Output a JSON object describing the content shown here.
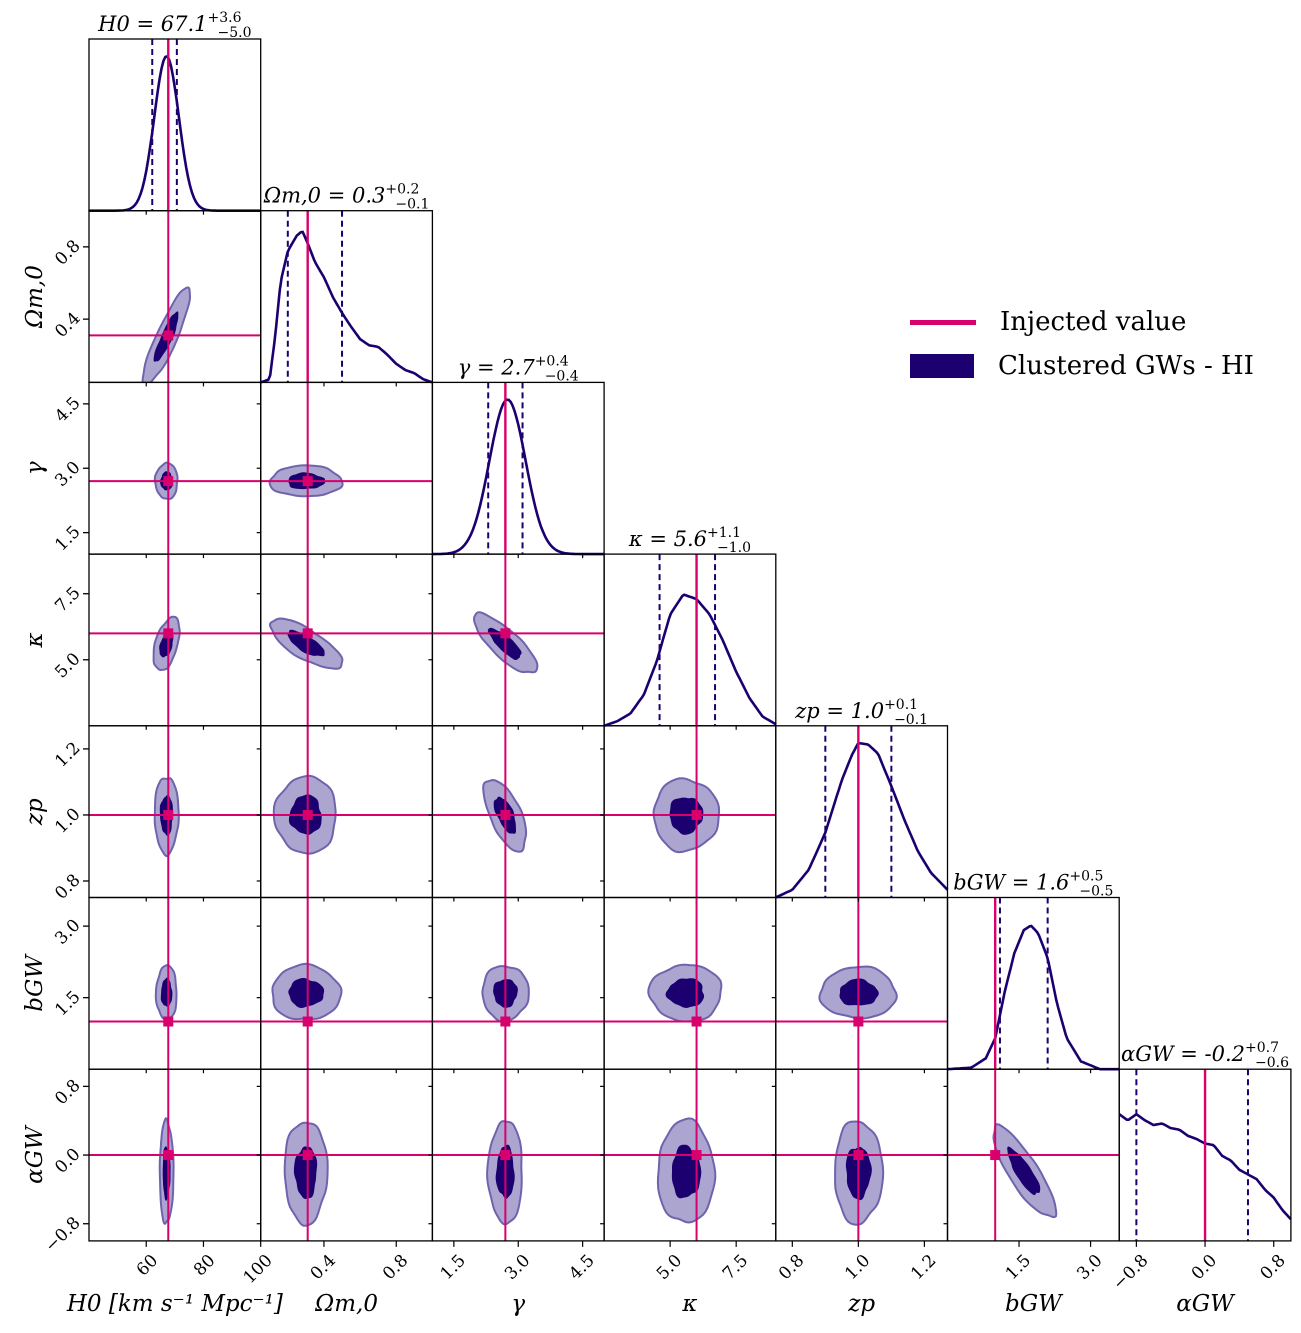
{
  "colors": {
    "injected": "#d8006d",
    "posterior": "#1c0070",
    "contour_outer": "#aca5cf",
    "contour_outer_edge": "#6e64ad",
    "contour_inner": "#1c0070"
  },
  "legend": {
    "injected_label": "Injected value",
    "posterior_label": "Clustered GWs - HI"
  },
  "chart_data": {
    "type": "corner",
    "parameters": [
      {
        "id": "H0",
        "label": "H_0 [km s^-1 Mpc^-1]",
        "axis_symbol": "H0",
        "axis_unit": "[km s⁻¹ Mpc⁻¹]",
        "title_symbol": "H0",
        "median": 67.1,
        "err_plus": 3.6,
        "err_minus": 5.0,
        "injected": 67.7,
        "range": [
          40,
          100
        ],
        "ticks": [
          60,
          80,
          100
        ],
        "tick_labels": [
          "60",
          "80",
          "100"
        ]
      },
      {
        "id": "Om",
        "label": "Ω_m,0",
        "axis_symbol": "Ωm,0",
        "axis_unit": "",
        "title_symbol": "Ωm,0",
        "median": 0.3,
        "err_plus": 0.2,
        "err_minus": 0.1,
        "injected": 0.31,
        "range": [
          0.05,
          1.0
        ],
        "ticks": [
          0.4,
          0.8
        ],
        "tick_labels": [
          "0.4",
          "0.8"
        ]
      },
      {
        "id": "gamma",
        "label": "γ",
        "axis_symbol": "γ",
        "axis_unit": "",
        "title_symbol": "γ",
        "median": 2.7,
        "err_plus": 0.4,
        "err_minus": 0.4,
        "injected": 2.7,
        "range": [
          1.0,
          5.0
        ],
        "ticks": [
          1.5,
          3.0,
          4.5
        ],
        "tick_labels": [
          "1.5",
          "3.0",
          "4.5"
        ]
      },
      {
        "id": "kappa",
        "label": "κ",
        "axis_symbol": "κ",
        "axis_unit": "",
        "title_symbol": "κ",
        "median": 5.6,
        "err_plus": 1.1,
        "err_minus": 1.0,
        "injected": 6.0,
        "range": [
          2.5,
          9.0
        ],
        "ticks": [
          5.0,
          7.5
        ],
        "tick_labels": [
          "5.0",
          "7.5"
        ]
      },
      {
        "id": "zp",
        "label": "z_p",
        "axis_symbol": "zp",
        "axis_unit": "",
        "title_symbol": "zp",
        "median": 1.0,
        "err_plus": 0.1,
        "err_minus": 0.1,
        "injected": 1.0,
        "range": [
          0.75,
          1.27
        ],
        "ticks": [
          0.8,
          1.0,
          1.2
        ],
        "tick_labels": [
          "0.8",
          "1.0",
          "1.2"
        ]
      },
      {
        "id": "bGW",
        "label": "b_GW",
        "axis_symbol": "bGW",
        "axis_unit": "",
        "title_symbol": "bGW",
        "median": 1.6,
        "err_plus": 0.5,
        "err_minus": 0.5,
        "injected": 1.0,
        "range": [
          0.0,
          3.6
        ],
        "ticks": [
          1.5,
          3.0
        ],
        "tick_labels": [
          "1.5",
          "3.0"
        ]
      },
      {
        "id": "aGW",
        "label": "α_GW",
        "axis_symbol": "αGW",
        "axis_unit": "",
        "title_symbol": "αGW",
        "median": -0.2,
        "err_plus": 0.7,
        "err_minus": 0.6,
        "injected": 0.0,
        "range": [
          -1.0,
          1.0
        ],
        "ticks": [
          -0.8,
          0.0,
          0.8
        ],
        "tick_labels": [
          "−0.8",
          "0.0",
          "0.8"
        ]
      }
    ],
    "diagonal_shapes": [
      {
        "id": "H0",
        "kind": "gauss",
        "mu": 67.1,
        "sig": 4.3
      },
      {
        "id": "Om",
        "kind": "skew",
        "points": [
          [
            0.05,
            0.0
          ],
          [
            0.1,
            0.02
          ],
          [
            0.13,
            0.3
          ],
          [
            0.16,
            0.65
          ],
          [
            0.2,
            0.85
          ],
          [
            0.25,
            0.95
          ],
          [
            0.28,
            0.98
          ],
          [
            0.31,
            0.9
          ],
          [
            0.35,
            0.78
          ],
          [
            0.4,
            0.68
          ],
          [
            0.45,
            0.55
          ],
          [
            0.5,
            0.45
          ],
          [
            0.55,
            0.36
          ],
          [
            0.6,
            0.28
          ],
          [
            0.65,
            0.24
          ],
          [
            0.7,
            0.23
          ],
          [
            0.75,
            0.18
          ],
          [
            0.8,
            0.12
          ],
          [
            0.85,
            0.08
          ],
          [
            0.9,
            0.06
          ],
          [
            0.95,
            0.02
          ],
          [
            1.0,
            0.0
          ]
        ]
      },
      {
        "id": "gamma",
        "kind": "gauss",
        "mu": 2.75,
        "sig": 0.42
      },
      {
        "id": "kappa",
        "kind": "points",
        "points": [
          [
            2.5,
            0.0
          ],
          [
            3.0,
            0.03
          ],
          [
            3.5,
            0.08
          ],
          [
            4.0,
            0.2
          ],
          [
            4.5,
            0.42
          ],
          [
            5.0,
            0.72
          ],
          [
            5.5,
            0.85
          ],
          [
            6.0,
            0.82
          ],
          [
            6.5,
            0.72
          ],
          [
            7.0,
            0.55
          ],
          [
            7.5,
            0.35
          ],
          [
            8.0,
            0.18
          ],
          [
            8.5,
            0.06
          ],
          [
            9.0,
            0.01
          ]
        ]
      },
      {
        "id": "zp",
        "kind": "points",
        "points": [
          [
            0.75,
            0.0
          ],
          [
            0.8,
            0.05
          ],
          [
            0.85,
            0.18
          ],
          [
            0.9,
            0.42
          ],
          [
            0.95,
            0.76
          ],
          [
            0.98,
            0.92
          ],
          [
            1.0,
            1.0
          ],
          [
            1.03,
            0.99
          ],
          [
            1.06,
            0.93
          ],
          [
            1.1,
            0.72
          ],
          [
            1.14,
            0.5
          ],
          [
            1.18,
            0.3
          ],
          [
            1.22,
            0.16
          ],
          [
            1.27,
            0.05
          ]
        ]
      },
      {
        "id": "bGW",
        "kind": "points",
        "points": [
          [
            0.0,
            0.0
          ],
          [
            0.5,
            0.01
          ],
          [
            0.8,
            0.07
          ],
          [
            1.0,
            0.2
          ],
          [
            1.2,
            0.5
          ],
          [
            1.4,
            0.75
          ],
          [
            1.6,
            0.9
          ],
          [
            1.75,
            0.93
          ],
          [
            1.9,
            0.88
          ],
          [
            2.1,
            0.72
          ],
          [
            2.3,
            0.42
          ],
          [
            2.5,
            0.2
          ],
          [
            2.8,
            0.05
          ],
          [
            3.2,
            0.0
          ],
          [
            3.6,
            0.0
          ]
        ]
      },
      {
        "id": "aGW",
        "kind": "points",
        "points": [
          [
            -1.0,
            0.82
          ],
          [
            -0.9,
            0.78
          ],
          [
            -0.8,
            0.82
          ],
          [
            -0.7,
            0.78
          ],
          [
            -0.6,
            0.75
          ],
          [
            -0.5,
            0.76
          ],
          [
            -0.4,
            0.73
          ],
          [
            -0.3,
            0.72
          ],
          [
            -0.2,
            0.68
          ],
          [
            -0.1,
            0.66
          ],
          [
            0.0,
            0.63
          ],
          [
            0.1,
            0.62
          ],
          [
            0.2,
            0.55
          ],
          [
            0.3,
            0.52
          ],
          [
            0.4,
            0.46
          ],
          [
            0.5,
            0.43
          ],
          [
            0.6,
            0.4
          ],
          [
            0.7,
            0.33
          ],
          [
            0.8,
            0.28
          ],
          [
            0.9,
            0.2
          ],
          [
            1.0,
            0.14
          ]
        ]
      }
    ],
    "grid": false,
    "legend_position": "right"
  }
}
